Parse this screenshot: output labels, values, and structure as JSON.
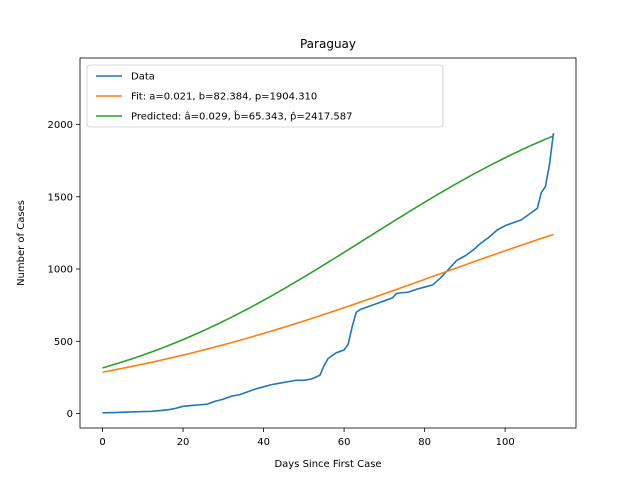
{
  "chart_data": {
    "type": "line",
    "title": "Paraguay",
    "xlabel": "Days Since First Case",
    "ylabel": "Number of Cases",
    "xlim": [
      -5.6,
      117.6
    ],
    "ylim": [
      -100,
      2460
    ],
    "xticks": [
      0,
      20,
      40,
      60,
      80,
      100
    ],
    "yticks": [
      0,
      500,
      1000,
      1500,
      2000
    ],
    "grid": false,
    "legend": "upper-left",
    "series": [
      {
        "name": "Data",
        "color": "#1f77b4",
        "x": [
          0,
          4,
          8,
          12,
          14,
          16,
          18,
          20,
          22,
          24,
          26,
          28,
          30,
          32,
          34,
          36,
          38,
          40,
          42,
          44,
          46,
          48,
          50,
          52,
          54,
          55,
          56,
          58,
          60,
          61,
          62,
          63,
          64,
          66,
          68,
          70,
          72,
          73,
          74,
          76,
          78,
          80,
          82,
          84,
          86,
          88,
          90,
          92,
          94,
          96,
          98,
          100,
          102,
          104,
          106,
          108,
          109,
          110,
          111,
          112
        ],
        "y": [
          5,
          8,
          12,
          15,
          20,
          25,
          35,
          50,
          55,
          60,
          65,
          85,
          100,
          120,
          130,
          150,
          170,
          185,
          200,
          210,
          220,
          230,
          230,
          240,
          265,
          330,
          380,
          420,
          440,
          480,
          600,
          700,
          720,
          740,
          760,
          780,
          800,
          830,
          835,
          840,
          860,
          875,
          890,
          940,
          1000,
          1060,
          1090,
          1130,
          1180,
          1220,
          1270,
          1300,
          1320,
          1340,
          1380,
          1420,
          1530,
          1570,
          1720,
          1940
        ]
      },
      {
        "name": "Fit: a=0.021, b=82.384, p=1904.310",
        "color": "#ff7f0e",
        "model": {
          "a": 0.021,
          "b": 82.384,
          "p": 1904.31
        }
      },
      {
        "name": "Predicted: â=0.029, b̂=65.343, p̂=2417.587",
        "color": "#2ca02c",
        "model": {
          "a": 0.029,
          "b": 65.343,
          "p": 2417.587
        }
      }
    ]
  }
}
